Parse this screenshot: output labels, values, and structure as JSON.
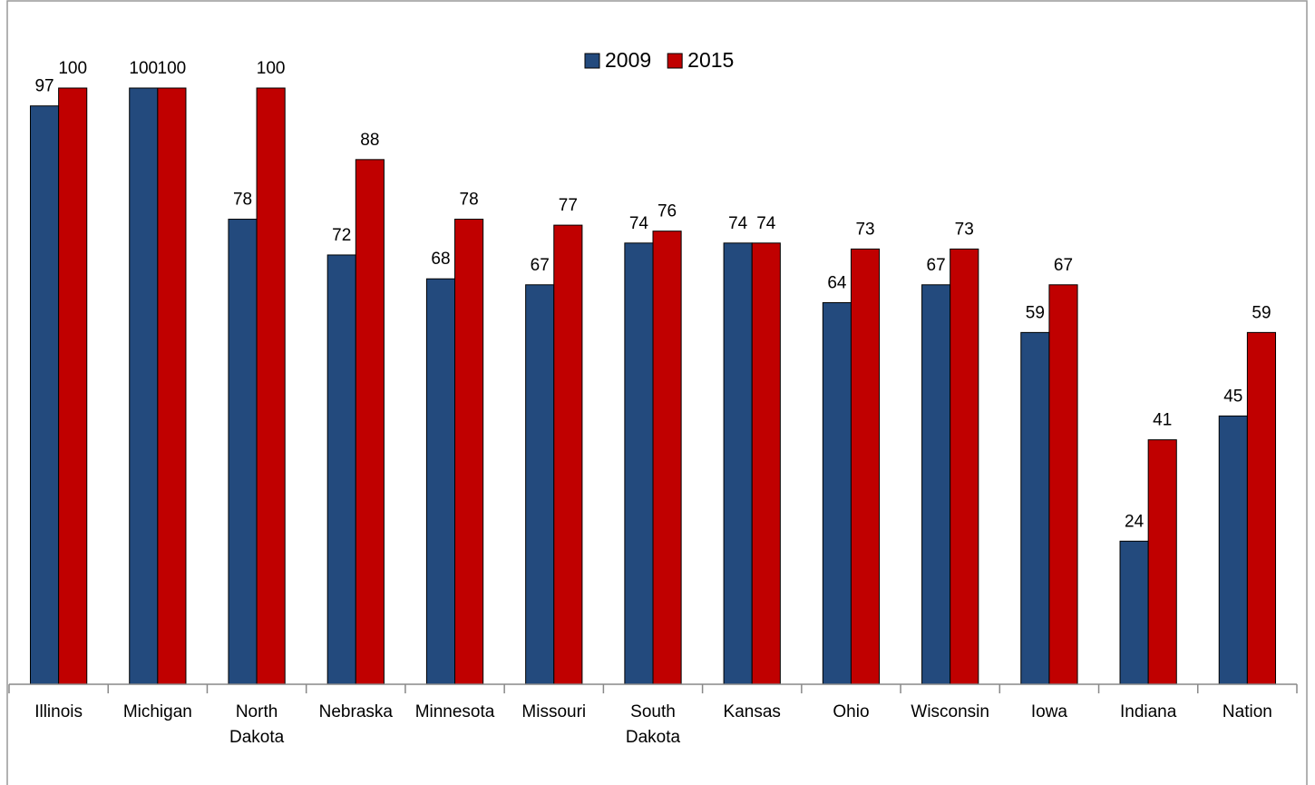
{
  "chart_data": {
    "type": "bar",
    "categories": [
      "Illinois",
      "Michigan",
      "North Dakota",
      "Nebraska",
      "Minnesota",
      "Missouri",
      "South Dakota",
      "Kansas",
      "Ohio",
      "Wisconsin",
      "Iowa",
      "Indiana",
      "Nation"
    ],
    "series": [
      {
        "name": "2009",
        "color": "#234a7d",
        "values": [
          97,
          100,
          78,
          72,
          68,
          67,
          74,
          74,
          64,
          67,
          59,
          24,
          45
        ]
      },
      {
        "name": "2015",
        "color": "#c00000",
        "values": [
          100,
          100,
          100,
          88,
          78,
          77,
          76,
          74,
          73,
          73,
          67,
          41,
          59
        ]
      }
    ],
    "ylim": [
      0,
      100
    ],
    "legend": "top"
  }
}
